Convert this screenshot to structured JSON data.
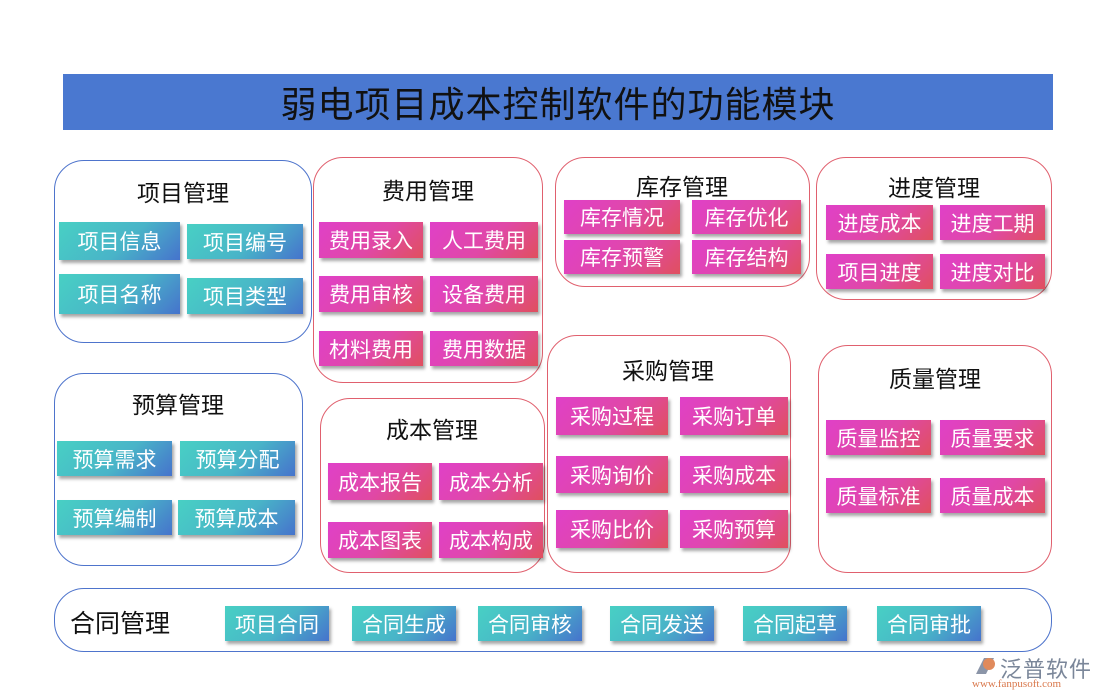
{
  "title": "弱电项目成本控制软件的功能模块",
  "colors": {
    "title_bar": "#4a78d0",
    "teal_button": "#48d0c4",
    "pink_button": "#e040c8",
    "blue_border": "#4e74cc",
    "red_border": "#e0606e"
  },
  "modules": [
    {
      "id": "project",
      "title": "项目管理",
      "items": [
        "项目信息",
        "项目编号",
        "项目名称",
        "项目类型"
      ]
    },
    {
      "id": "expense",
      "title": "费用管理",
      "items": [
        "费用录入",
        "人工费用",
        "费用审核",
        "设备费用",
        "材料费用",
        "费用数据"
      ]
    },
    {
      "id": "inventory",
      "title": "库存管理",
      "items": [
        "库存情况",
        "库存优化",
        "库存预警",
        "库存结构"
      ]
    },
    {
      "id": "progress",
      "title": "进度管理",
      "items": [
        "进度成本",
        "进度工期",
        "项目进度",
        "进度对比"
      ]
    },
    {
      "id": "budget",
      "title": "预算管理",
      "items": [
        "预算需求",
        "预算分配",
        "预算编制",
        "预算成本"
      ]
    },
    {
      "id": "cost",
      "title": "成本管理",
      "items": [
        "成本报告",
        "成本分析",
        "成本图表",
        "成本构成"
      ]
    },
    {
      "id": "purchase",
      "title": "采购管理",
      "items": [
        "采购过程",
        "采购订单",
        "采购询价",
        "采购成本",
        "采购比价",
        "采购预算"
      ]
    },
    {
      "id": "quality",
      "title": "质量管理",
      "items": [
        "质量监控",
        "质量要求",
        "质量标准",
        "质量成本"
      ]
    },
    {
      "id": "contract",
      "title": "合同管理",
      "items": [
        "项目合同",
        "合同生成",
        "合同审核",
        "合同发送",
        "合同起草",
        "合同审批"
      ]
    }
  ],
  "logo": {
    "name": "泛普软件",
    "url": "www.fanpusoft.com"
  }
}
